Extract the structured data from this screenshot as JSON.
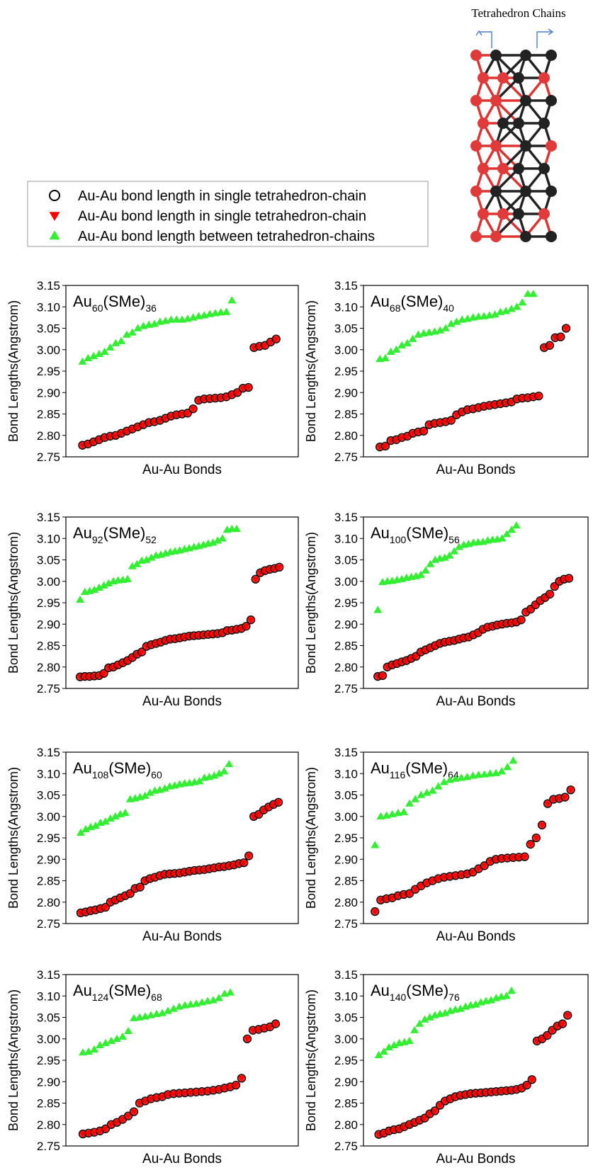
{
  "legend": {
    "entries": [
      {
        "name": "Au-Au bond length in single tetrahedron-chain",
        "marker": "circle",
        "color": "#000000"
      },
      {
        "name": "Au-Au bond length in single tetrahedron-chain",
        "marker": "triangle-down",
        "color": "#ff0000"
      },
      {
        "name": "Au-Au bond length between tetrahedron-chains",
        "marker": "triangle-up",
        "color": "#33ee33"
      }
    ]
  },
  "structure_label": "Tetrahedron Chains",
  "chart_data": [
    {
      "type": "scatter",
      "title": [
        "Au",
        "60",
        "(SMe)",
        "36"
      ],
      "xlabel": "Au-Au Bonds",
      "ylabel": "Bond Lengths(Angstrom)",
      "xlim": [
        -3,
        39
      ],
      "ylim": [
        2.75,
        3.15
      ],
      "yticks": [
        2.75,
        {
          "value": 2.8,
          "label": "2.80"
        },
        2.85,
        {
          "value": 2.9,
          "label": "2.90"
        },
        2.95,
        {
          "value": 3,
          "label": "3.00"
        },
        3.05,
        {
          "value": 3.1,
          "label": "3.10"
        },
        3.15
      ],
      "series": [
        {
          "values": [
            2.777,
            2.78,
            2.785,
            2.79,
            2.795,
            2.798,
            2.8,
            2.805,
            2.81,
            2.815,
            2.82,
            2.825,
            2.83,
            2.832,
            2.835,
            2.84,
            2.845,
            2.848,
            2.85,
            2.852,
            2.862,
            2.882,
            2.885,
            2.886,
            2.887,
            2.888,
            2.89,
            2.895,
            2.9,
            2.91,
            2.912,
            3.005,
            3.008,
            3.01,
            3.018,
            3.025
          ]
        },
        {
          "values": [
            2.972,
            2.98,
            2.985,
            2.99,
            2.995,
            3.005,
            3.015,
            3.02,
            3.035,
            3.04,
            3.05,
            3.055,
            3.058,
            3.06,
            3.065,
            3.067,
            3.07,
            3.07,
            3.07,
            3.072,
            3.075,
            3.078,
            3.08,
            3.083,
            3.085,
            3.087,
            3.088,
            3.115
          ]
        }
      ]
    },
    {
      "type": "scatter",
      "title": [
        "Au",
        "68",
        "(SMe)",
        "40"
      ],
      "xlabel": "Au-Au Bonds",
      "ylabel": "Bond Lengths(Angstrom)",
      "xlim": [
        -3,
        38
      ],
      "ylim": [
        2.75,
        3.15
      ],
      "yticks": [
        2.75,
        {
          "value": 2.8,
          "label": "2.80"
        },
        2.85,
        {
          "value": 2.9,
          "label": "2.90"
        },
        2.95,
        {
          "value": 3,
          "label": "3.00"
        },
        3.05,
        {
          "value": 3.1,
          "label": "3.10"
        },
        3.15
      ],
      "series": [
        {
          "values": [
            2.773,
            2.775,
            2.788,
            2.79,
            2.795,
            2.798,
            2.805,
            2.808,
            2.81,
            2.825,
            2.828,
            2.83,
            2.832,
            2.835,
            2.848,
            2.855,
            2.86,
            2.862,
            2.865,
            2.868,
            2.87,
            2.872,
            2.874,
            2.876,
            2.878,
            2.885,
            2.887,
            2.888,
            2.89,
            2.892,
            3.005,
            3.01,
            3.028,
            3.03,
            3.05
          ]
        },
        {
          "values": [
            2.978,
            2.98,
            2.995,
            3.0,
            3.01,
            3.015,
            3.025,
            3.035,
            3.038,
            3.04,
            3.042,
            3.045,
            3.05,
            3.06,
            3.065,
            3.07,
            3.072,
            3.075,
            3.077,
            3.078,
            3.08,
            3.082,
            3.088,
            3.09,
            3.095,
            3.1,
            3.11,
            3.13,
            3.13
          ]
        }
      ]
    },
    {
      "type": "scatter",
      "title": [
        "Au",
        "92",
        "(SMe)",
        "52"
      ],
      "xlabel": "Au-Au Bonds",
      "ylabel": "Bond Lengths(Angstrom)",
      "xlim": [
        -3,
        46
      ],
      "ylim": [
        2.75,
        3.15
      ],
      "yticks": [
        2.75,
        {
          "value": 2.8,
          "label": "2.80"
        },
        2.85,
        {
          "value": 2.9,
          "label": "2.90"
        },
        2.95,
        {
          "value": 3,
          "label": "3.00"
        },
        3.05,
        {
          "value": 3.1,
          "label": "3.10"
        },
        3.15
      ],
      "series": [
        {
          "values": [
            2.777,
            2.778,
            2.778,
            2.779,
            2.78,
            2.785,
            2.798,
            2.8,
            2.805,
            2.81,
            2.815,
            2.822,
            2.83,
            2.835,
            2.848,
            2.852,
            2.855,
            2.858,
            2.862,
            2.865,
            2.866,
            2.868,
            2.87,
            2.872,
            2.873,
            2.874,
            2.875,
            2.876,
            2.877,
            2.878,
            2.88,
            2.885,
            2.886,
            2.888,
            2.89,
            2.895,
            2.91,
            3.005,
            3.02,
            3.025,
            3.028,
            3.03,
            3.033
          ]
        },
        {
          "values": [
            2.957,
            2.975,
            2.977,
            2.98,
            2.985,
            2.99,
            2.995,
            3.0,
            3.002,
            3.003,
            3.005,
            3.035,
            3.04,
            3.048,
            3.05,
            3.055,
            3.06,
            3.062,
            3.065,
            3.068,
            3.07,
            3.072,
            3.075,
            3.077,
            3.08,
            3.082,
            3.085,
            3.088,
            3.09,
            3.095,
            3.1,
            3.12,
            3.122,
            3.122
          ]
        }
      ]
    },
    {
      "type": "scatter",
      "title": [
        "Au",
        "100",
        "(SMe)",
        "56"
      ],
      "xlabel": "Au-Au Bonds",
      "ylabel": "Bond Lengths(Angstrom)",
      "xlim": [
        -3,
        44
      ],
      "ylim": [
        2.75,
        3.15
      ],
      "yticks": [
        2.75,
        {
          "value": 2.8,
          "label": "2.80"
        },
        2.85,
        {
          "value": 2.9,
          "label": "2.90"
        },
        2.95,
        {
          "value": 3,
          "label": "3.00"
        },
        3.05,
        {
          "value": 3.1,
          "label": "3.10"
        },
        3.15
      ],
      "series": [
        {
          "values": [
            2.778,
            2.78,
            2.8,
            2.805,
            2.808,
            2.812,
            2.815,
            2.82,
            2.825,
            2.835,
            2.84,
            2.845,
            2.85,
            2.855,
            2.858,
            2.86,
            2.862,
            2.865,
            2.868,
            2.87,
            2.875,
            2.88,
            2.888,
            2.893,
            2.895,
            2.898,
            2.9,
            2.902,
            2.903,
            2.905,
            2.91,
            2.928,
            2.935,
            2.945,
            2.955,
            2.962,
            2.97,
            2.988,
            3.0,
            3.005,
            3.007
          ]
        },
        {
          "values": [
            2.933,
            2.998,
            3.0,
            3.001,
            3.003,
            3.005,
            3.008,
            3.01,
            3.012,
            3.015,
            3.025,
            3.04,
            3.05,
            3.053,
            3.055,
            3.06,
            3.07,
            3.08,
            3.085,
            3.087,
            3.09,
            3.091,
            3.092,
            3.095,
            3.097,
            3.098,
            3.1,
            3.11,
            3.12,
            3.13
          ]
        }
      ]
    },
    {
      "type": "scatter",
      "title": [
        "Au",
        "108",
        "(SMe)",
        "60"
      ],
      "xlabel": "Au-Au Bonds",
      "ylabel": "Bond Lengths(Angstrom)",
      "xlim": [
        -3,
        44
      ],
      "ylim": [
        2.75,
        3.15
      ],
      "yticks": [
        2.75,
        {
          "value": 2.8,
          "label": "2.80"
        },
        2.85,
        {
          "value": 2.9,
          "label": "2.90"
        },
        2.95,
        {
          "value": 3,
          "label": "3.00"
        },
        3.05,
        {
          "value": 3.1,
          "label": "3.10"
        },
        3.15
      ],
      "series": [
        {
          "values": [
            2.775,
            2.777,
            2.78,
            2.782,
            2.785,
            2.788,
            2.8,
            2.805,
            2.81,
            2.815,
            2.82,
            2.832,
            2.835,
            2.85,
            2.855,
            2.858,
            2.862,
            2.865,
            2.866,
            2.867,
            2.868,
            2.87,
            2.872,
            2.874,
            2.875,
            2.876,
            2.878,
            2.88,
            2.882,
            2.883,
            2.885,
            2.887,
            2.89,
            2.892,
            2.908,
            3.0,
            3.005,
            3.015,
            3.022,
            3.028,
            3.033
          ]
        },
        {
          "values": [
            2.962,
            2.97,
            2.975,
            2.978,
            2.985,
            2.988,
            2.995,
            3.0,
            3.005,
            3.008,
            3.04,
            3.042,
            3.045,
            3.048,
            3.055,
            3.06,
            3.062,
            3.065,
            3.07,
            3.072,
            3.075,
            3.077,
            3.078,
            3.08,
            3.082,
            3.09,
            3.092,
            3.095,
            3.1,
            3.105,
            3.122
          ]
        }
      ]
    },
    {
      "type": "scatter",
      "title": [
        "Au",
        "116",
        "(SMe)",
        "64"
      ],
      "xlabel": "Au-Au Bonds",
      "ylabel": "Bond Lengths(Angstrom)",
      "xlim": [
        -2,
        37
      ],
      "ylim": [
        2.75,
        3.15
      ],
      "yticks": [
        2.75,
        {
          "value": 2.8,
          "label": "2.80"
        },
        2.85,
        {
          "value": 2.9,
          "label": "2.90"
        },
        2.95,
        {
          "value": 3,
          "label": "3.00"
        },
        3.05,
        {
          "value": 3.1,
          "label": "3.10"
        },
        3.15
      ],
      "series": [
        {
          "values": [
            2.778,
            2.805,
            2.808,
            2.81,
            2.815,
            2.818,
            2.82,
            2.83,
            2.838,
            2.845,
            2.85,
            2.855,
            2.858,
            2.86,
            2.862,
            2.864,
            2.866,
            2.87,
            2.878,
            2.885,
            2.895,
            2.9,
            2.902,
            2.903,
            2.904,
            2.905,
            2.906,
            2.935,
            2.95,
            2.98,
            3.03,
            3.04,
            3.042,
            3.045,
            3.062
          ]
        },
        {
          "values": [
            2.933,
            3.0,
            3.002,
            3.005,
            3.008,
            3.01,
            3.03,
            3.04,
            3.05,
            3.055,
            3.06,
            3.07,
            3.08,
            3.085,
            3.088,
            3.09,
            3.092,
            3.095,
            3.097,
            3.098,
            3.1,
            3.101,
            3.105,
            3.115,
            3.13
          ]
        }
      ]
    },
    {
      "type": "scatter",
      "title": [
        "Au",
        "124",
        "(SMe)",
        "68"
      ],
      "xlabel": "Au-Au Bonds",
      "ylabel": "Bond Lengths(Angstrom)",
      "xlim": [
        -3,
        38
      ],
      "ylim": [
        2.75,
        3.15
      ],
      "yticks": [
        2.75,
        {
          "value": 2.8,
          "label": "2.80"
        },
        2.85,
        {
          "value": 2.9,
          "label": "2.90"
        },
        2.95,
        {
          "value": 3,
          "label": "3.00"
        },
        3.05,
        {
          "value": 3.1,
          "label": "3.10"
        },
        3.15
      ],
      "series": [
        {
          "values": [
            2.778,
            2.78,
            2.782,
            2.785,
            2.79,
            2.8,
            2.805,
            2.812,
            2.82,
            2.83,
            2.85,
            2.855,
            2.86,
            2.863,
            2.865,
            2.87,
            2.872,
            2.873,
            2.874,
            2.875,
            2.876,
            2.877,
            2.878,
            2.88,
            2.882,
            2.885,
            2.888,
            2.892,
            2.908,
            3.0,
            3.02,
            3.022,
            3.025,
            3.028,
            3.035
          ]
        },
        {
          "values": [
            2.968,
            2.97,
            2.975,
            2.985,
            2.99,
            2.995,
            3.0,
            3.005,
            3.018,
            3.048,
            3.05,
            3.052,
            3.055,
            3.058,
            3.06,
            3.065,
            3.07,
            3.075,
            3.078,
            3.08,
            3.082,
            3.085,
            3.088,
            3.09,
            3.095,
            3.105,
            3.108
          ]
        }
      ]
    },
    {
      "type": "scatter",
      "title": [
        "Au",
        "140",
        "(SMe)",
        "76"
      ],
      "xlabel": "Au-Au Bonds",
      "ylabel": "Bond Lengths(Angstrom)",
      "xlim": [
        -3,
        41
      ],
      "ylim": [
        2.75,
        3.15
      ],
      "yticks": [
        2.75,
        {
          "value": 2.8,
          "label": "2.80"
        },
        2.85,
        {
          "value": 2.9,
          "label": "2.90"
        },
        2.95,
        {
          "value": 3,
          "label": "3.00"
        },
        3.05,
        {
          "value": 3.1,
          "label": "3.10"
        },
        3.15
      ],
      "series": [
        {
          "values": [
            2.777,
            2.78,
            2.785,
            2.788,
            2.79,
            2.795,
            2.8,
            2.805,
            2.81,
            2.815,
            2.825,
            2.832,
            2.845,
            2.855,
            2.86,
            2.865,
            2.868,
            2.87,
            2.872,
            2.873,
            2.874,
            2.875,
            2.876,
            2.877,
            2.878,
            2.879,
            2.88,
            2.882,
            2.885,
            2.892,
            2.905,
            2.995,
            3.0,
            3.008,
            3.02,
            3.03,
            3.035,
            3.055
          ]
        },
        {
          "values": [
            2.962,
            2.97,
            2.98,
            2.985,
            2.99,
            2.992,
            2.995,
            3.02,
            3.035,
            3.045,
            3.05,
            3.055,
            3.058,
            3.06,
            3.065,
            3.068,
            3.07,
            3.075,
            3.078,
            3.08,
            3.085,
            3.088,
            3.09,
            3.095,
            3.098,
            3.1,
            3.112
          ]
        }
      ]
    }
  ]
}
